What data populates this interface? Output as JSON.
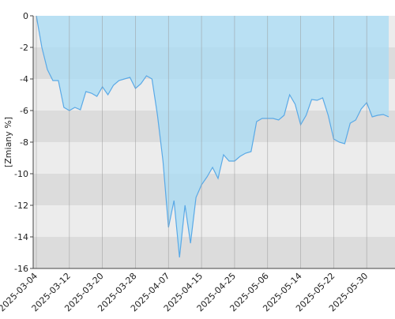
{
  "chart_data": {
    "type": "area",
    "y_label": "[Zmiany %]",
    "categories": [
      "2025-03-04",
      null,
      null,
      null,
      null,
      null,
      "2025-03-12",
      null,
      null,
      null,
      null,
      null,
      "2025-03-20",
      null,
      null,
      null,
      null,
      null,
      "2025-03-28",
      null,
      null,
      null,
      null,
      null,
      "2025-04-07",
      null,
      null,
      null,
      null,
      null,
      "2025-04-15",
      null,
      null,
      null,
      null,
      null,
      "2025-04-25",
      null,
      null,
      null,
      null,
      null,
      "2025-05-06",
      null,
      null,
      null,
      null,
      null,
      "2025-05-14",
      null,
      null,
      null,
      null,
      null,
      "2025-05-22",
      null,
      null,
      null,
      null,
      null,
      "2025-05-30",
      null,
      null,
      null,
      null
    ],
    "values": [
      0,
      -2,
      -3.4,
      -4.1,
      -4.1,
      -5.8,
      -6.0,
      -5.8,
      -5.95,
      -4.8,
      -4.9,
      -5.1,
      -4.5,
      -5.0,
      -4.4,
      -4.1,
      -4.0,
      -3.9,
      -4.6,
      -4.3,
      -3.8,
      -4.0,
      -6.3,
      -9.2,
      -13.4,
      -11.7,
      -15.3,
      -12.0,
      -14.4,
      -11.5,
      -10.7,
      -10.2,
      -9.6,
      -10.3,
      -8.8,
      -9.2,
      -9.2,
      -8.9,
      -8.7,
      -8.6,
      -6.7,
      -6.5,
      -6.5,
      -6.5,
      -6.6,
      -6.3,
      -5.0,
      -5.6,
      -6.9,
      -6.3,
      -5.3,
      -5.35,
      -5.2,
      -6.3,
      -7.8,
      -8.0,
      -8.1,
      -6.8,
      -6.6,
      -5.9,
      -5.5,
      -6.4,
      -6.3,
      -6.25,
      -6.4
    ],
    "color": "#5aa9e6",
    "fill": "#a8dcf5",
    "ylim": [
      -16,
      0
    ],
    "yticks": [
      0,
      -2,
      -4,
      -6,
      -8,
      -10,
      -12,
      -14,
      -16
    ],
    "grid": true
  }
}
